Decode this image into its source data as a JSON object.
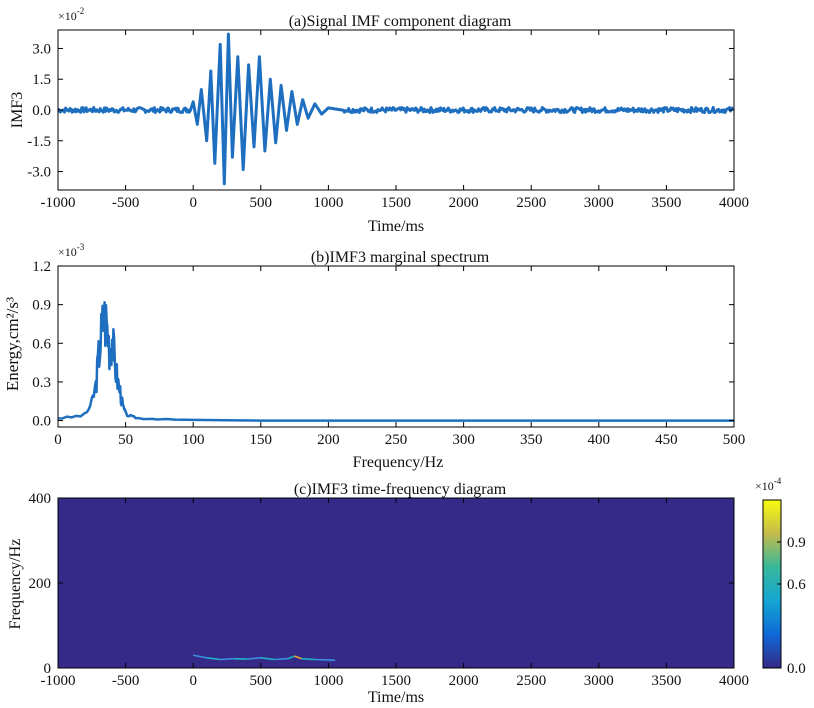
{
  "colors": {
    "line": "#1f6fc0",
    "heatmap_bg": "#352a87",
    "heatmap_mid": "#21b5c9",
    "heatmap_high": "#f9e61e",
    "heatmap_orange": "#f5a13a"
  },
  "chart_data": [
    {
      "type": "line",
      "title": "(a)Signal IMF component diagram",
      "xlabel": "Time/ms",
      "ylabel": "IMF3",
      "y_exponent": "×10",
      "y_exponent_power": "-2",
      "xlim": [
        -1000,
        4000
      ],
      "ylim": [
        -3.9,
        3.9
      ],
      "xticks": [
        "-1000",
        "-500",
        "0",
        "500",
        "1000",
        "1500",
        "2000",
        "2500",
        "3000",
        "3500",
        "4000"
      ],
      "yticks": [
        "3.0",
        "1.5",
        "0.0",
        "-1.5",
        "-3.0"
      ],
      "x": [
        -1000,
        -20,
        0,
        30,
        60,
        100,
        130,
        160,
        200,
        230,
        260,
        290,
        330,
        370,
        410,
        450,
        490,
        530,
        570,
        610,
        650,
        690,
        730,
        770,
        810,
        850,
        900,
        950,
        1000,
        1100,
        4000
      ],
      "y": [
        0.0,
        0.0,
        0.4,
        -0.7,
        1.0,
        -1.5,
        1.9,
        -2.6,
        3.2,
        -3.6,
        3.7,
        -2.3,
        2.6,
        -2.9,
        2.2,
        -1.8,
        2.6,
        -2.0,
        1.5,
        -1.6,
        1.2,
        -1.0,
        0.9,
        -0.7,
        0.5,
        -0.4,
        0.3,
        -0.2,
        0.1,
        0.0,
        0.0
      ]
    },
    {
      "type": "line",
      "title": "(b)IMF3 marginal spectrum",
      "xlabel": "Frequency/Hz",
      "ylabel": "Energy,cm²/s³",
      "y_exponent": "×10",
      "y_exponent_power": "-3",
      "xlim": [
        0,
        500
      ],
      "ylim": [
        -0.05,
        1.2
      ],
      "xticks": [
        "0",
        "50",
        "100",
        "150",
        "200",
        "250",
        "300",
        "350",
        "400",
        "450",
        "500"
      ],
      "yticks": [
        "1.2",
        "0.9",
        "0.6",
        "0.3",
        "0.0"
      ],
      "x": [
        0,
        10,
        20,
        25,
        28,
        30,
        32,
        34,
        36,
        38,
        40,
        42,
        44,
        46,
        48,
        50,
        55,
        60,
        70,
        80,
        100,
        150,
        500
      ],
      "y": [
        0.02,
        0.03,
        0.05,
        0.15,
        0.3,
        0.55,
        0.75,
        0.9,
        0.85,
        0.65,
        0.72,
        0.5,
        0.35,
        0.25,
        0.12,
        0.06,
        0.03,
        0.02,
        0.015,
        0.01,
        0.005,
        0.0,
        0.0
      ]
    },
    {
      "type": "heatmap",
      "title": "(c)IMF3 time-frequency diagram",
      "xlabel": "Time/ms",
      "ylabel": "Frequency/Hz",
      "colorbar_exponent": "×10",
      "colorbar_exponent_power": "-4",
      "colorbar_ticks": [
        "0.9",
        "0.6",
        "0.0"
      ],
      "colorbar_range": [
        0,
        1.2
      ],
      "xlim": [
        -1000,
        4000
      ],
      "ylim": [
        0,
        400
      ],
      "xticks": [
        "-1000",
        "-500",
        "0",
        "500",
        "1000",
        "1500",
        "2000",
        "2500",
        "3000",
        "3500",
        "4000"
      ],
      "yticks": [
        "400",
        "200",
        "0"
      ],
      "trace_x": [
        0,
        100,
        200,
        300,
        400,
        500,
        600,
        700,
        750,
        800,
        900,
        1000,
        1050
      ],
      "trace_y": [
        30,
        24,
        20,
        22,
        21,
        24,
        20,
        22,
        28,
        22,
        20,
        19,
        18
      ],
      "trace_energy": [
        0.3,
        0.6,
        0.5,
        0.7,
        0.5,
        0.6,
        0.5,
        0.7,
        0.95,
        0.7,
        0.5,
        0.4,
        0.3
      ]
    }
  ]
}
